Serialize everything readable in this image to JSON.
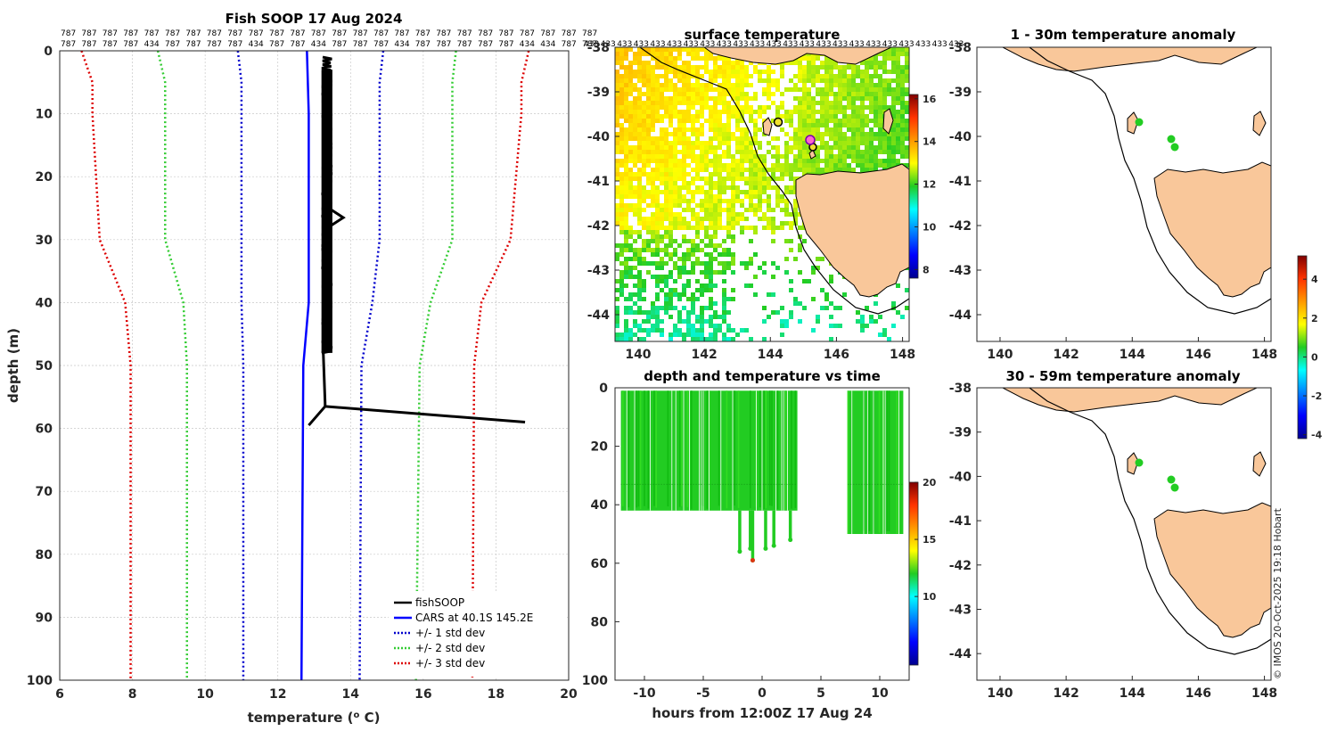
{
  "credit": "© IMOS 20-Oct-2025 19:18 Hobart",
  "colors": {
    "fish": "#000000",
    "cars": "#0000ff",
    "std1": "#0000cc",
    "std2": "#33cc33",
    "std3": "#dd0000",
    "land": "#f9c79a",
    "points": "#22cc22"
  },
  "profile": {
    "title": "Fish SOOP 17 Aug 2024",
    "xlabel_pre": "temperature (",
    "xlabel_sup": "o",
    "xlabel_post": " C)",
    "ylabel": "depth (m)",
    "sensor_row1": [
      "787",
      "787",
      "787",
      "787",
      "787",
      "787",
      "787",
      "787",
      "787",
      "787",
      "787",
      "787",
      "787",
      "787",
      "787",
      "787",
      "787",
      "787",
      "787",
      "787",
      "787",
      "787",
      "787",
      "787",
      "787",
      "787"
    ],
    "sensor_row2": [
      "787",
      "787",
      "787",
      "787",
      "434",
      "787",
      "787",
      "787",
      "787",
      "434",
      "787",
      "787",
      "434",
      "787",
      "787",
      "787",
      "434",
      "787",
      "787",
      "787",
      "787",
      "787",
      "434",
      "434",
      "787",
      "787"
    ],
    "legend": [
      "fishSOOP",
      "CARS at 40.1S 145.2E",
      "+/- 1 std dev",
      "+/- 2 std dev",
      "+/- 3 std dev"
    ]
  },
  "surface": {
    "title": "surface temperature",
    "sensor_row": [
      "433",
      "433",
      "433",
      "433",
      "433",
      "433",
      "433",
      "433",
      "433",
      "433",
      "433",
      "433",
      "433",
      "433",
      "433",
      "433",
      "433",
      "433",
      "433",
      "433",
      "433",
      "433",
      "433"
    ]
  },
  "depthtime": {
    "title": "depth and temperature vs time",
    "xlabel": "hours from 12:00Z 17 Aug 24"
  },
  "anom1": {
    "title": "1 - 30m temperature anomaly"
  },
  "anom2": {
    "title": "30 - 59m temperature anomaly"
  },
  "chart_data": [
    {
      "type": "line",
      "name": "profile",
      "xlim": [
        6,
        20
      ],
      "ylim": [
        0,
        100
      ],
      "xticks": [
        6,
        8,
        10,
        12,
        14,
        16,
        18,
        20
      ],
      "yticks": [
        0,
        10,
        20,
        30,
        40,
        50,
        60,
        70,
        80,
        90,
        100
      ],
      "series": [
        {
          "name": "CARS mean",
          "depth": [
            0,
            10,
            30,
            40,
            50,
            100
          ],
          "temp": [
            12.8,
            12.85,
            12.85,
            12.85,
            12.7,
            12.65
          ]
        },
        {
          "name": "-1 std",
          "depth": [
            0,
            5,
            10,
            30,
            40,
            50,
            100
          ],
          "temp": [
            10.9,
            11.0,
            11.0,
            11.0,
            11.0,
            11.05,
            11.05
          ]
        },
        {
          "name": "+1 std",
          "depth": [
            0,
            5,
            10,
            30,
            40,
            50,
            100
          ],
          "temp": [
            14.9,
            14.8,
            14.8,
            14.8,
            14.6,
            14.3,
            14.25
          ]
        },
        {
          "name": "-2 std",
          "depth": [
            0,
            5,
            10,
            30,
            40,
            50,
            100
          ],
          "temp": [
            8.7,
            8.9,
            8.9,
            8.9,
            9.4,
            9.5,
            9.5
          ]
        },
        {
          "name": "+2 std",
          "depth": [
            0,
            5,
            10,
            30,
            40,
            50,
            100
          ],
          "temp": [
            16.9,
            16.8,
            16.8,
            16.8,
            16.2,
            15.9,
            15.8
          ]
        },
        {
          "name": "-3 std",
          "depth": [
            0,
            5,
            10,
            30,
            40,
            50,
            100
          ],
          "temp": [
            6.6,
            6.9,
            6.9,
            7.1,
            7.8,
            7.95,
            7.95
          ]
        },
        {
          "name": "+3 std",
          "depth": [
            0,
            5,
            10,
            30,
            40,
            50,
            100
          ],
          "temp": [
            18.9,
            18.7,
            18.7,
            18.4,
            17.6,
            17.4,
            17.35
          ]
        },
        {
          "name": "fishSOOP band",
          "temp_range": [
            13.2,
            13.5
          ],
          "depth_range": [
            1,
            48
          ]
        },
        {
          "name": "fishSOOP spike",
          "depth": [
            25,
            26.5,
            28
          ],
          "temp": [
            13.4,
            13.8,
            13.4
          ]
        },
        {
          "name": "fishSOOP tail",
          "depth": [
            48,
            56,
            56.5,
            59,
            56.5,
            59.5
          ],
          "temp": [
            13.25,
            13.3,
            13.3,
            18.8,
            13.3,
            12.85
          ]
        }
      ]
    },
    {
      "type": "heatmap",
      "name": "surface temperature",
      "xlim": [
        139.3,
        148.2
      ],
      "ylim": [
        -44.6,
        -38
      ],
      "xticks": [
        140,
        142,
        144,
        146,
        148
      ],
      "yticks": [
        -38,
        -39,
        -40,
        -41,
        -42,
        -43,
        -44
      ],
      "colorbar": {
        "min": 7.6,
        "max": 16.2,
        "ticks": [
          8,
          10,
          12,
          14,
          16
        ]
      },
      "markers": [
        {
          "lon": 144.3,
          "lat": -39.7
        },
        {
          "lon": 145.3,
          "lat": -40.25
        },
        {
          "lon": 145.2,
          "lat": -40.1
        }
      ]
    },
    {
      "type": "scatter",
      "name": "depth and temperature vs time",
      "xlim": [
        -12.5,
        12.5
      ],
      "ylim": [
        0,
        100
      ],
      "xticks": [
        -10,
        -5,
        0,
        5,
        10
      ],
      "xtick_labels": [
        "-10",
        "-5",
        "0",
        "5",
        "10"
      ],
      "yticks": [
        0,
        20,
        40,
        60,
        80,
        100
      ],
      "colorbar": {
        "min": 4,
        "max": 20,
        "ticks": [
          10,
          15,
          20
        ]
      },
      "segments": [
        {
          "t_range": [
            -12,
            3
          ],
          "depth_range": [
            1,
            42
          ]
        },
        {
          "t_range": [
            7.3,
            12
          ],
          "depth_range": [
            1,
            50
          ]
        }
      ],
      "deep_dives": [
        {
          "t": -1.9,
          "depth": 56
        },
        {
          "t": -1.0,
          "depth": 55
        },
        {
          "t": -0.8,
          "depth": 59
        },
        {
          "t": 0.3,
          "depth": 55
        },
        {
          "t": 1.0,
          "depth": 54
        },
        {
          "t": 2.4,
          "depth": 52
        }
      ]
    },
    {
      "type": "scatter",
      "name": "1 - 30m temperature anomaly",
      "xlim": [
        139.3,
        148.2
      ],
      "ylim": [
        -44.6,
        -38
      ],
      "xticks": [
        140,
        142,
        144,
        146,
        148
      ],
      "yticks": [
        -38,
        -39,
        -40,
        -41,
        -42,
        -43,
        -44
      ],
      "points": [
        {
          "lon": 144.3,
          "lat": -39.7
        },
        {
          "lon": 145.2,
          "lat": -40.1
        },
        {
          "lon": 145.3,
          "lat": -40.25
        }
      ]
    },
    {
      "type": "scatter",
      "name": "30 - 59m temperature anomaly",
      "xlim": [
        139.3,
        148.2
      ],
      "ylim": [
        -44.6,
        -38
      ],
      "xticks": [
        140,
        142,
        144,
        146,
        148
      ],
      "yticks": [
        -38,
        -39,
        -40,
        -41,
        -42,
        -43,
        -44
      ],
      "points": [
        {
          "lon": 144.3,
          "lat": -39.7
        },
        {
          "lon": 145.2,
          "lat": -40.1
        },
        {
          "lon": 145.3,
          "lat": -40.25
        }
      ],
      "colorbar": {
        "min": -4.2,
        "max": 5.2,
        "ticks": [
          4,
          2,
          0,
          -2,
          -4
        ]
      }
    }
  ]
}
